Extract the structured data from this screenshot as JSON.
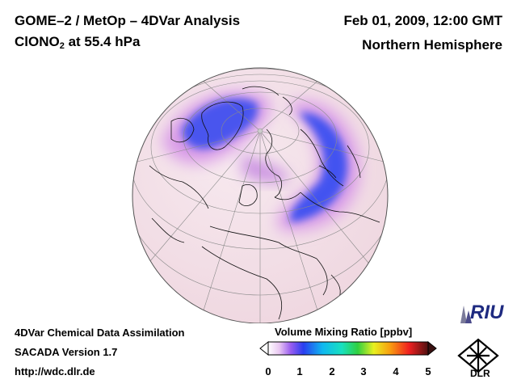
{
  "header": {
    "title_line1": "GOME–2 / MetOp – 4DVar Analysis",
    "species": "ClONO",
    "species_sub": "2",
    "level_text": " at 55.4 hPa",
    "date": "Feb 01, 2009, 12:00 GMT",
    "region": "Northern Hemisphere"
  },
  "footer": {
    "line1": "4DVar Chemical Data Assimilation",
    "line2": "SACADA Version 1.7",
    "line3": "http://wdc.dlr.de"
  },
  "colorbar": {
    "title": "Volume Mixing Ratio [ppbv]",
    "ticks": [
      "0",
      "1",
      "2",
      "3",
      "4",
      "5"
    ],
    "min": 0,
    "max": 5
  },
  "logos": {
    "riu": "RIU",
    "dlr": "DLR"
  },
  "colors": {
    "low": "#f5e6ec",
    "mid": "#d68ee8",
    "high": "#3a4cf0"
  }
}
